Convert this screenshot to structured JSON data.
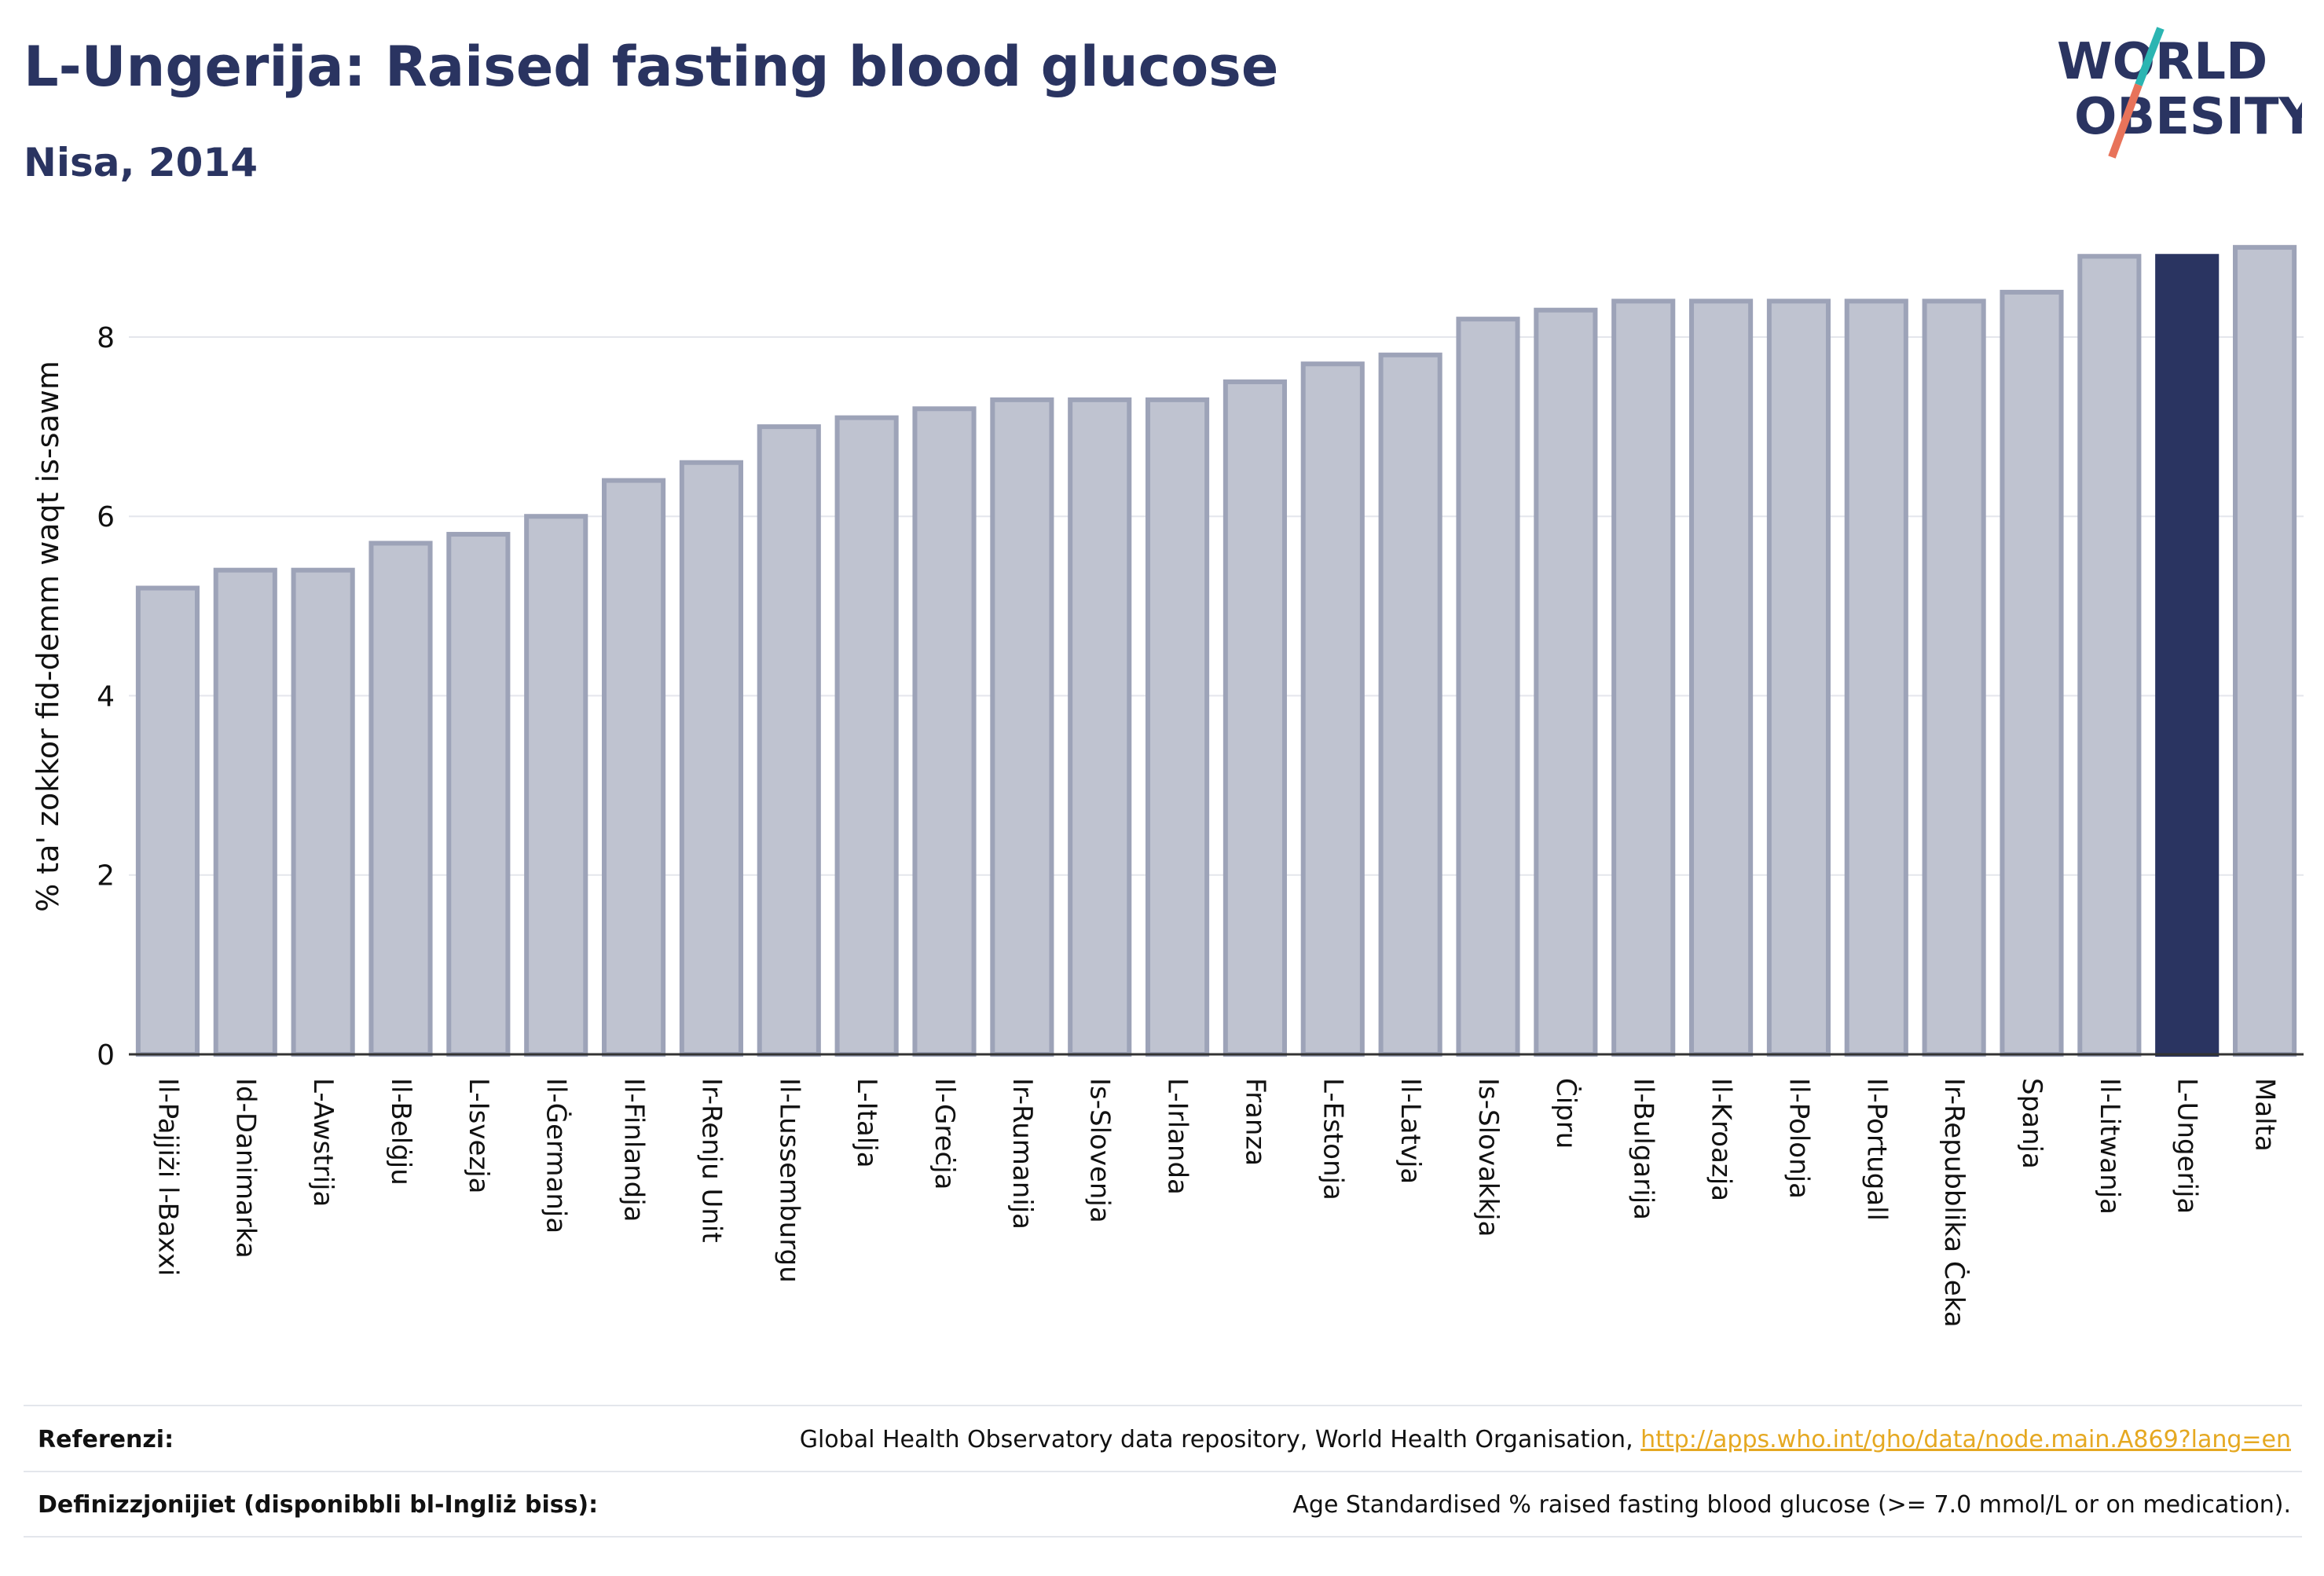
{
  "header": {
    "title": "L-Ungerija: Raised fasting blood glucose",
    "subtitle": "Nisa, 2014"
  },
  "logo": {
    "line1": "WORLD",
    "line2": "OBESITY",
    "colors": {
      "text": "#2a3461",
      "slash_teal": "#2bb5b2",
      "slash_coral": "#e8735a"
    }
  },
  "colors": {
    "bar_default": "#bfc3d0",
    "bar_border": "#9da3b8",
    "bar_highlight": "#2a3461",
    "grid": "#e4e6ec",
    "axis": "#333333"
  },
  "chart_data": {
    "type": "bar",
    "ylabel": "% ta' zokkor fid-demm waqt is-sawm",
    "ylim": [
      0,
      9.2
    ],
    "yticks": [
      0,
      2,
      4,
      6,
      8
    ],
    "grid": true,
    "highlight": "L-Ungerija",
    "categories": [
      "Il-Pajjiżi l-Baxxi",
      "Id-Danimarka",
      "L-Awstrija",
      "Il-Belġju",
      "L-Isvezja",
      "Il-Ġermanja",
      "Il-Finlandja",
      "Ir-Renju Unit",
      "Il-Lussemburgu",
      "L-Italja",
      "Il-Greċja",
      "Ir-Rumanija",
      "Is-Slovenja",
      "L-Irlanda",
      "Franza",
      "L-Estonja",
      "Il-Latvja",
      "Is-Slovakkja",
      "Ċipru",
      "Il-Bulgarija",
      "Il-Kroazja",
      "Il-Polonja",
      "Il-Portugall",
      "Ir-Repubblika Ċeka",
      "Spanja",
      "Il-Litwanja",
      "L-Ungerija",
      "Malta"
    ],
    "values": [
      5.2,
      5.4,
      5.4,
      5.7,
      5.8,
      6.0,
      6.4,
      6.6,
      7.0,
      7.1,
      7.2,
      7.3,
      7.3,
      7.3,
      7.5,
      7.7,
      7.8,
      8.2,
      8.3,
      8.4,
      8.4,
      8.4,
      8.4,
      8.4,
      8.5,
      8.9,
      8.9,
      9.0
    ]
  },
  "footer": {
    "references_label": "Referenzi:",
    "references_text": "Global Health Observatory data repository, World Health Organisation, ",
    "references_link": "http://apps.who.int/gho/data/node.main.A869?lang=en",
    "definitions_label": "Definizzjonijiet (disponibbli bl-Ingliż biss):",
    "definitions_text": "Age Standardised % raised fasting blood glucose (>= 7.0 mmol/L or on medication)."
  }
}
